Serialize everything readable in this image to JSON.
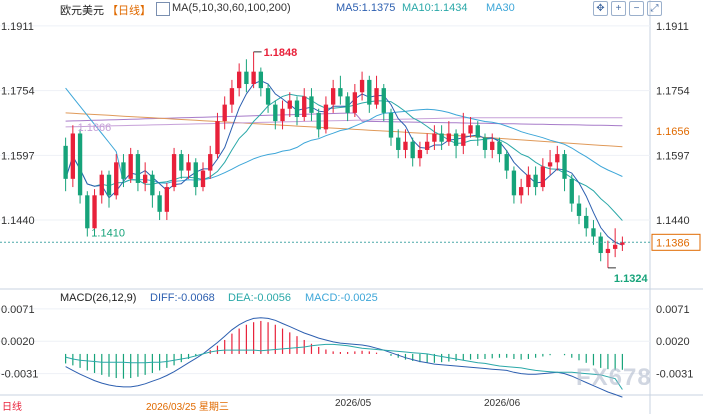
{
  "header": {
    "symbol": "欧元美元",
    "period": "【日线】",
    "ma_params": "MA(5,10,30,60,100,200)",
    "ma5": "MA5:1.1375",
    "ma10": "MA10:1.1434",
    "ma30": "MA30"
  },
  "macd_header": {
    "params": "MACD(26,12,9)",
    "diff": "DIFF:-0.0068",
    "dea": "DEA:-0.0056",
    "macd": "MACD:-0.0025"
  },
  "bottom": {
    "date_label": "2026/03/25 星期三",
    "month1": "2026/05",
    "month2": "2026/06",
    "logo_text": "日线"
  },
  "watermark": "FX678",
  "colors": {
    "up": "#e8213a",
    "down": "#16a37a",
    "ma5": "#2d5fb0",
    "ma10": "#2aa8a8",
    "ma30": "#3da6d8",
    "ma60": "#c6a0d8",
    "ma100": "#e09a5a",
    "ma200": "#a77bc9",
    "price_tag": "#e06a00"
  },
  "chart_data": {
    "type": "candlestick",
    "price_axis": {
      "ticks": [
        1.1911,
        1.1754,
        1.1597,
        1.144
      ],
      "min": 1.128,
      "max": 1.1935
    },
    "high_label": "1.1848",
    "low_label": "1.1324",
    "left_label": "1.1666",
    "left_low_label": "1.1410",
    "current_price": 1.1386,
    "current_label": "1.1386",
    "ma60_label": "1.1656",
    "ma5_last": 1.1375,
    "ma10_last": 1.1434,
    "candles": [
      [
        1.162,
        1.154,
        1.164,
        1.151
      ],
      [
        1.154,
        1.165,
        1.167,
        1.152
      ],
      [
        1.165,
        1.15,
        1.166,
        1.148
      ],
      [
        1.15,
        1.142,
        1.151,
        1.14
      ],
      [
        1.142,
        1.15,
        1.1515,
        1.141
      ],
      [
        1.15,
        1.155,
        1.156,
        1.148
      ],
      [
        1.155,
        1.15,
        1.156,
        1.147
      ],
      [
        1.15,
        1.158,
        1.16,
        1.149
      ],
      [
        1.158,
        1.154,
        1.16,
        1.152
      ],
      [
        1.154,
        1.16,
        1.1615,
        1.153
      ],
      [
        1.16,
        1.153,
        1.161,
        1.151
      ],
      [
        1.153,
        1.155,
        1.158,
        1.151
      ],
      [
        1.155,
        1.15,
        1.156,
        1.147
      ],
      [
        1.15,
        1.146,
        1.151,
        1.144
      ],
      [
        1.146,
        1.152,
        1.153,
        1.144
      ],
      [
        1.152,
        1.16,
        1.1615,
        1.151
      ],
      [
        1.16,
        1.156,
        1.161,
        1.154
      ],
      [
        1.156,
        1.158,
        1.16,
        1.154
      ],
      [
        1.158,
        1.152,
        1.159,
        1.15
      ],
      [
        1.152,
        1.156,
        1.158,
        1.151
      ],
      [
        1.156,
        1.16,
        1.162,
        1.154
      ],
      [
        1.16,
        1.168,
        1.17,
        1.159
      ],
      [
        1.168,
        1.172,
        1.174,
        1.166
      ],
      [
        1.172,
        1.176,
        1.178,
        1.17
      ],
      [
        1.176,
        1.18,
        1.182,
        1.174
      ],
      [
        1.18,
        1.177,
        1.183,
        1.175
      ],
      [
        1.177,
        1.18,
        1.1848,
        1.176
      ],
      [
        1.18,
        1.176,
        1.181,
        1.174
      ],
      [
        1.176,
        1.172,
        1.177,
        1.17
      ],
      [
        1.172,
        1.168,
        1.173,
        1.166
      ],
      [
        1.168,
        1.171,
        1.173,
        1.166
      ],
      [
        1.171,
        1.173,
        1.175,
        1.169
      ],
      [
        1.173,
        1.169,
        1.174,
        1.167
      ],
      [
        1.169,
        1.174,
        1.176,
        1.168
      ],
      [
        1.174,
        1.17,
        1.176,
        1.168
      ],
      [
        1.17,
        1.166,
        1.171,
        1.164
      ],
      [
        1.166,
        1.172,
        1.174,
        1.165
      ],
      [
        1.172,
        1.176,
        1.178,
        1.17
      ],
      [
        1.176,
        1.174,
        1.179,
        1.172
      ],
      [
        1.174,
        1.17,
        1.175,
        1.168
      ],
      [
        1.17,
        1.175,
        1.177,
        1.169
      ],
      [
        1.175,
        1.178,
        1.18,
        1.173
      ],
      [
        1.178,
        1.172,
        1.179,
        1.17
      ],
      [
        1.172,
        1.176,
        1.179,
        1.171
      ],
      [
        1.176,
        1.17,
        1.177,
        1.168
      ],
      [
        1.17,
        1.164,
        1.171,
        1.162
      ],
      [
        1.164,
        1.161,
        1.166,
        1.159
      ],
      [
        1.161,
        1.163,
        1.166,
        1.159
      ],
      [
        1.163,
        1.159,
        1.164,
        1.157
      ],
      [
        1.159,
        1.161,
        1.163,
        1.157
      ],
      [
        1.161,
        1.163,
        1.165,
        1.16
      ],
      [
        1.163,
        1.165,
        1.167,
        1.161
      ],
      [
        1.165,
        1.163,
        1.167,
        1.161
      ],
      [
        1.163,
        1.165,
        1.168,
        1.162
      ],
      [
        1.165,
        1.162,
        1.166,
        1.159
      ],
      [
        1.162,
        1.165,
        1.17,
        1.16
      ],
      [
        1.165,
        1.167,
        1.169,
        1.164
      ],
      [
        1.167,
        1.164,
        1.168,
        1.162
      ],
      [
        1.164,
        1.161,
        1.165,
        1.159
      ],
      [
        1.161,
        1.163,
        1.165,
        1.159
      ],
      [
        1.163,
        1.16,
        1.164,
        1.158
      ],
      [
        1.16,
        1.156,
        1.161,
        1.154
      ],
      [
        1.156,
        1.15,
        1.157,
        1.148
      ],
      [
        1.15,
        1.152,
        1.154,
        1.148
      ],
      [
        1.152,
        1.155,
        1.157,
        1.15
      ],
      [
        1.155,
        1.152,
        1.157,
        1.15
      ],
      [
        1.152,
        1.157,
        1.159,
        1.151
      ],
      [
        1.157,
        1.158,
        1.161,
        1.155
      ],
      [
        1.158,
        1.16,
        1.162,
        1.156
      ],
      [
        1.16,
        1.154,
        1.161,
        1.151
      ],
      [
        1.154,
        1.148,
        1.155,
        1.146
      ],
      [
        1.148,
        1.145,
        1.15,
        1.143
      ],
      [
        1.145,
        1.142,
        1.147,
        1.14
      ],
      [
        1.142,
        1.14,
        1.144,
        1.138
      ],
      [
        1.14,
        1.136,
        1.141,
        1.134
      ],
      [
        1.136,
        1.137,
        1.139,
        1.1324
      ],
      [
        1.137,
        1.138,
        1.142,
        1.135
      ],
      [
        1.138,
        1.1386,
        1.14,
        1.1365
      ]
    ],
    "macd_axis": {
      "ticks": [
        0.0071,
        0.002,
        -0.0031
      ],
      "tick_labels": [
        "0.0071",
        "0.0020",
        "-0.0031"
      ],
      "min": -0.006,
      "max": 0.0085
    },
    "macd_hist": [
      -0.0015,
      -0.0018,
      -0.0022,
      -0.0026,
      -0.003,
      -0.0033,
      -0.0036,
      -0.0038,
      -0.0039,
      -0.0038,
      -0.0036,
      -0.0033,
      -0.003,
      -0.0026,
      -0.0022,
      -0.0018,
      -0.0013,
      -0.0008,
      -0.0004,
      0.0,
      0.0006,
      0.0013,
      0.0022,
      0.0032,
      0.004,
      0.0046,
      0.005,
      0.0052,
      0.005,
      0.0046,
      0.004,
      0.0034,
      0.0028,
      0.0022,
      0.0016,
      0.0011,
      0.0007,
      0.0004,
      0.0003,
      0.0003,
      0.0004,
      0.0005,
      0.0004,
      0.0002,
      0.0,
      -0.0003,
      -0.0006,
      -0.0009,
      -0.0011,
      -0.0013,
      -0.0014,
      -0.0014,
      -0.0013,
      -0.0012,
      -0.0011,
      -0.001,
      -0.0009,
      -0.0008,
      -0.0008,
      -0.0007,
      -0.0006,
      -0.0006,
      -0.0008,
      -0.0009,
      -0.0008,
      -0.0006,
      -0.0004,
      -0.0002,
      0.0,
      -0.0002,
      -0.0006,
      -0.001,
      -0.0014,
      -0.0018,
      -0.0022,
      -0.0024,
      -0.0025,
      -0.0025
    ],
    "diff": [
      -0.002,
      -0.0026,
      -0.0032,
      -0.0037,
      -0.0042,
      -0.0046,
      -0.0049,
      -0.0051,
      -0.0052,
      -0.0052,
      -0.005,
      -0.0047,
      -0.0043,
      -0.0039,
      -0.0034,
      -0.0028,
      -0.0021,
      -0.0014,
      -0.0007,
      0.0,
      0.0009,
      0.0018,
      0.0028,
      0.0038,
      0.0046,
      0.0052,
      0.0056,
      0.0057,
      0.0056,
      0.0053,
      0.0048,
      0.0043,
      0.0038,
      0.0033,
      0.0029,
      0.0025,
      0.0022,
      0.0019,
      0.0017,
      0.0016,
      0.0015,
      0.0014,
      0.0012,
      0.0009,
      0.0006,
      0.0002,
      -0.0002,
      -0.0006,
      -0.0009,
      -0.0012,
      -0.0014,
      -0.0016,
      -0.0017,
      -0.0018,
      -0.0019,
      -0.002,
      -0.0021,
      -0.0022,
      -0.0023,
      -0.0024,
      -0.0025,
      -0.0026,
      -0.0029,
      -0.0031,
      -0.0032,
      -0.0032,
      -0.0031,
      -0.003,
      -0.0029,
      -0.0031,
      -0.0035,
      -0.004,
      -0.0045,
      -0.005,
      -0.0055,
      -0.006,
      -0.0064,
      -0.0068
    ],
    "dea": [
      -0.0005,
      -0.0008,
      -0.001,
      -0.0011,
      -0.0012,
      -0.0013,
      -0.0013,
      -0.0013,
      -0.0013,
      -0.0014,
      -0.0014,
      -0.0014,
      -0.0013,
      -0.0013,
      -0.0012,
      -0.001,
      -0.0008,
      -0.0006,
      -0.0003,
      0.0,
      0.0003,
      0.0005,
      0.0006,
      0.0006,
      0.0006,
      0.0006,
      0.0006,
      0.0005,
      0.0006,
      0.0007,
      0.0008,
      0.0009,
      0.001,
      0.0011,
      0.0013,
      0.0014,
      0.0015,
      0.0015,
      0.0014,
      0.0013,
      0.0011,
      0.0009,
      0.0008,
      0.0007,
      0.0006,
      0.0005,
      0.0004,
      0.0003,
      0.0002,
      0.0001,
      0.0,
      -0.0002,
      -0.0004,
      -0.0006,
      -0.0008,
      -0.001,
      -0.0012,
      -0.0014,
      -0.0015,
      -0.0017,
      -0.0019,
      -0.002,
      -0.0021,
      -0.0022,
      -0.0024,
      -0.0026,
      -0.0027,
      -0.0028,
      -0.0029,
      -0.0029,
      -0.0029,
      -0.003,
      -0.0031,
      -0.0032,
      -0.0033,
      -0.0036,
      -0.0039,
      -0.0056
    ]
  }
}
